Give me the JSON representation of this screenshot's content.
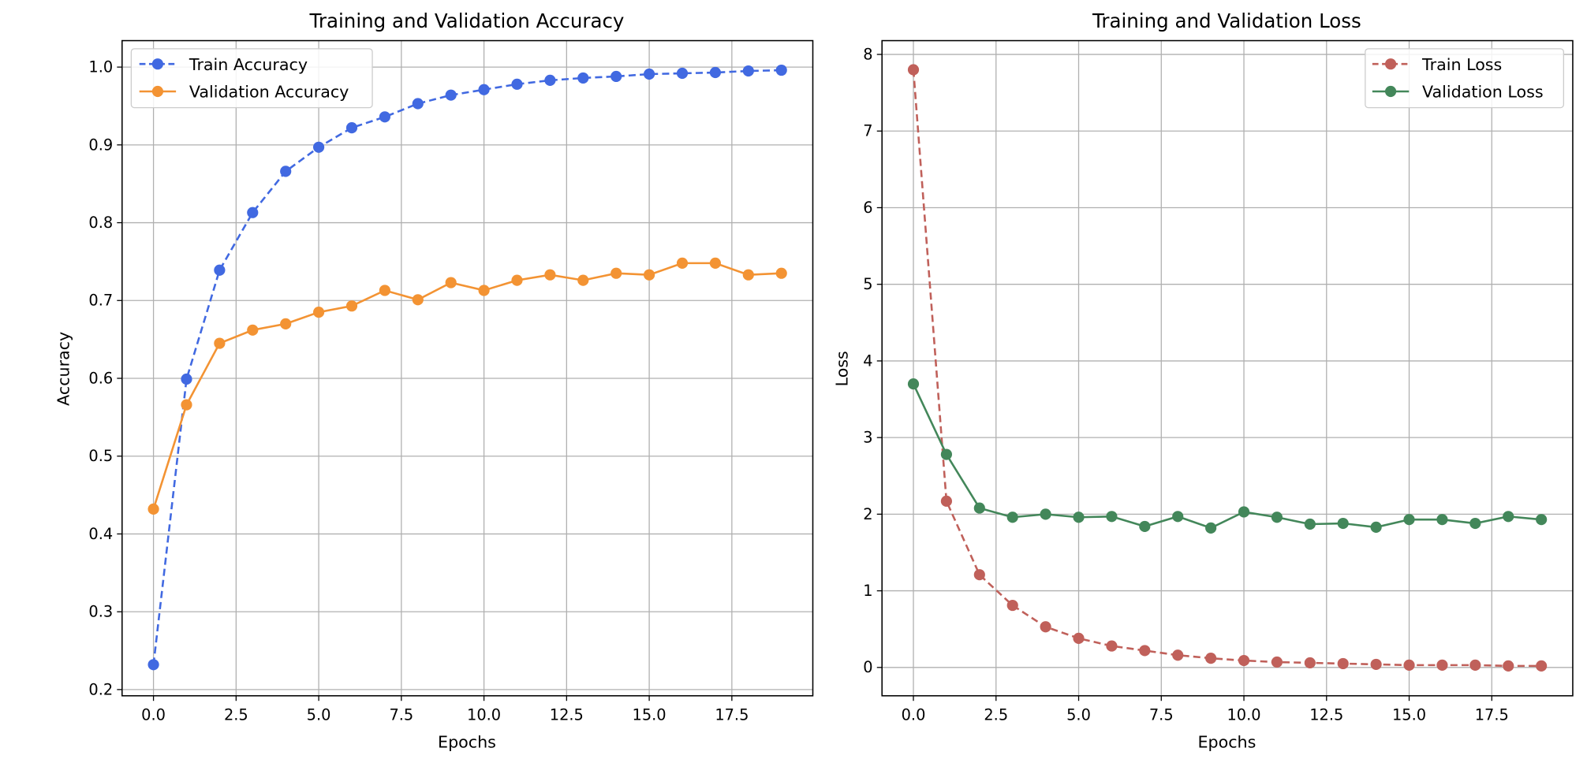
{
  "chart_data": [
    {
      "type": "line",
      "title": "Training and Validation Accuracy",
      "xlabel": "Epochs",
      "ylabel": "Accuracy",
      "x": [
        0,
        1,
        2,
        3,
        4,
        5,
        6,
        7,
        8,
        9,
        10,
        11,
        12,
        13,
        14,
        15,
        16,
        17,
        18,
        19
      ],
      "xlim": [
        -0.95,
        19.95
      ],
      "ylim": [
        0.192,
        1.034
      ],
      "xticks": [
        0.0,
        2.5,
        5.0,
        7.5,
        10.0,
        12.5,
        15.0,
        17.5
      ],
      "xtick_labels": [
        "0.0",
        "2.5",
        "5.0",
        "7.5",
        "10.0",
        "12.5",
        "15.0",
        "17.5"
      ],
      "yticks": [
        0.2,
        0.3,
        0.4,
        0.5,
        0.6,
        0.7,
        0.8,
        0.9,
        1.0
      ],
      "ytick_labels": [
        "0.2",
        "0.3",
        "0.4",
        "0.5",
        "0.6",
        "0.7",
        "0.8",
        "0.9",
        "1.0"
      ],
      "grid": true,
      "legend_position": "upper left",
      "series": [
        {
          "name": "Train Accuracy",
          "color": "#4169e1",
          "linestyle": "dashed",
          "marker": "o",
          "values": [
            0.232,
            0.599,
            0.739,
            0.813,
            0.866,
            0.897,
            0.922,
            0.936,
            0.953,
            0.964,
            0.971,
            0.978,
            0.983,
            0.986,
            0.988,
            0.991,
            0.992,
            0.993,
            0.995,
            0.996
          ]
        },
        {
          "name": "Validation Accuracy",
          "color": "#f39333",
          "linestyle": "solid",
          "marker": "o",
          "values": [
            0.432,
            0.566,
            0.645,
            0.662,
            0.67,
            0.685,
            0.693,
            0.713,
            0.701,
            0.723,
            0.713,
            0.726,
            0.733,
            0.726,
            0.735,
            0.733,
            0.748,
            0.748,
            0.733,
            0.735
          ]
        }
      ]
    },
    {
      "type": "line",
      "title": "Training and Validation Loss",
      "xlabel": "Epochs",
      "ylabel": "Loss",
      "x": [
        0,
        1,
        2,
        3,
        4,
        5,
        6,
        7,
        8,
        9,
        10,
        11,
        12,
        13,
        14,
        15,
        16,
        17,
        18,
        19
      ],
      "xlim": [
        -0.95,
        19.95
      ],
      "ylim": [
        -0.37,
        8.18
      ],
      "xticks": [
        0.0,
        2.5,
        5.0,
        7.5,
        10.0,
        12.5,
        15.0,
        17.5
      ],
      "xtick_labels": [
        "0.0",
        "2.5",
        "5.0",
        "7.5",
        "10.0",
        "12.5",
        "15.0",
        "17.5"
      ],
      "yticks": [
        0,
        1,
        2,
        3,
        4,
        5,
        6,
        7,
        8
      ],
      "ytick_labels": [
        "0",
        "1",
        "2",
        "3",
        "4",
        "5",
        "6",
        "7",
        "8"
      ],
      "grid": true,
      "legend_position": "upper right",
      "series": [
        {
          "name": "Train Loss",
          "color": "#c0605a",
          "linestyle": "dashed",
          "marker": "o",
          "values": [
            7.8,
            2.17,
            1.21,
            0.81,
            0.53,
            0.38,
            0.28,
            0.22,
            0.16,
            0.12,
            0.09,
            0.07,
            0.06,
            0.05,
            0.04,
            0.03,
            0.03,
            0.03,
            0.02,
            0.02
          ]
        },
        {
          "name": "Validation Loss",
          "color": "#43875a",
          "linestyle": "solid",
          "marker": "o",
          "values": [
            3.7,
            2.78,
            2.08,
            1.96,
            2.0,
            1.96,
            1.97,
            1.84,
            1.97,
            1.82,
            2.03,
            1.96,
            1.87,
            1.88,
            1.83,
            1.93,
            1.93,
            1.88,
            1.97,
            1.93
          ]
        }
      ]
    }
  ]
}
